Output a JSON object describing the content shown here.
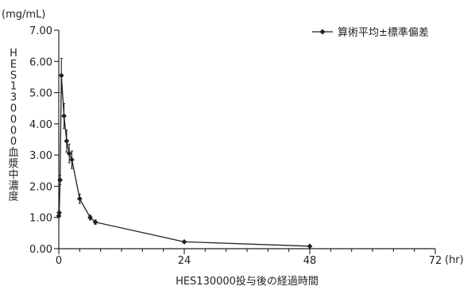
{
  "chart_data": {
    "type": "line",
    "unit_label": "(mg/mL)",
    "xlabel": "HES130000投与後の経過時間",
    "x_unit": "(hr)",
    "ylabel_chars": [
      "H",
      "E",
      "S",
      "1",
      "3",
      "0",
      "0",
      "0",
      "0",
      "血",
      "漿",
      "中",
      "濃",
      "度"
    ],
    "xlim": [
      0,
      72
    ],
    "ylim": [
      0,
      7
    ],
    "x_ticks": [
      0,
      24,
      48,
      72
    ],
    "y_ticks": [
      "0.00",
      "1.00",
      "2.00",
      "3.00",
      "4.00",
      "5.00",
      "6.00",
      "7.00"
    ],
    "legend_position": "top-right",
    "grid": false,
    "color": "#231f20",
    "series": [
      {
        "name": "算術平均±標準偏差",
        "x": [
          0,
          0.083,
          0.25,
          0.5,
          1,
          1.5,
          2,
          2.5,
          4,
          6,
          7,
          24,
          48
        ],
        "y": [
          1.05,
          1.15,
          2.2,
          5.55,
          4.25,
          3.45,
          3.05,
          2.85,
          1.6,
          1.0,
          0.85,
          0.22,
          0.08
        ],
        "err": [
          0.05,
          0.06,
          0.15,
          0.55,
          0.4,
          0.35,
          0.3,
          0.28,
          0.15,
          0.08,
          0.07,
          0.02,
          0.01
        ]
      }
    ]
  }
}
